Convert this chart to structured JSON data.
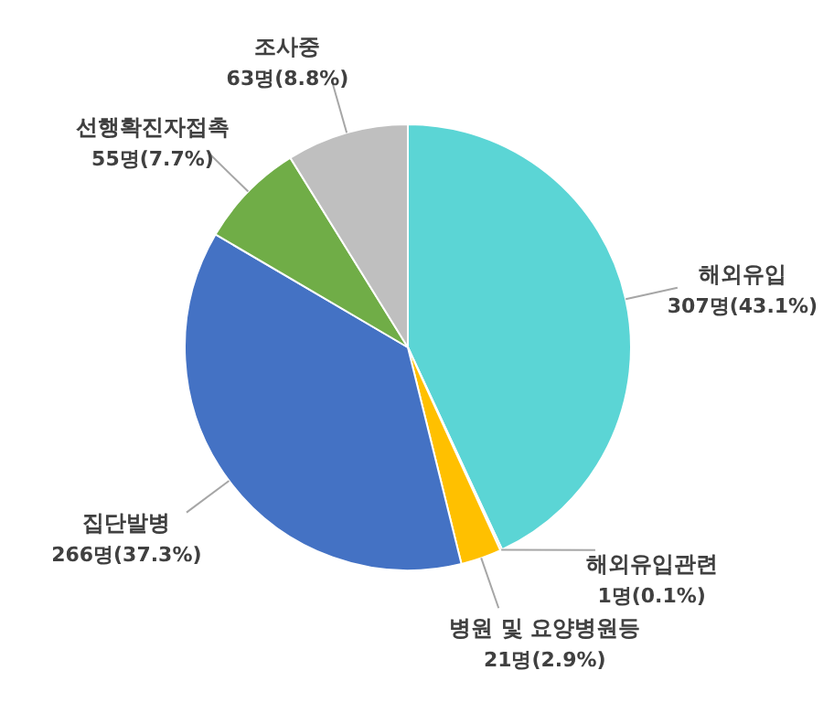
{
  "chart_data": {
    "type": "pie",
    "categories": [
      "해외유입",
      "해외유입관련",
      "병원 및 요양병원등",
      "집단발병",
      "선행확진자접촉",
      "조사중"
    ],
    "values": [
      307,
      1,
      21,
      266,
      55,
      63
    ],
    "value_labels": [
      "307명(43.1%)",
      "1명(0.1%)",
      "21명(2.9%)",
      "266명(37.3%)",
      "55명(7.7%)",
      "63명(8.8%)"
    ],
    "colors": [
      "#5bd5d5",
      "#ed7d31",
      "#ffc000",
      "#4472c4",
      "#70ad47",
      "#bfbfbf"
    ]
  }
}
